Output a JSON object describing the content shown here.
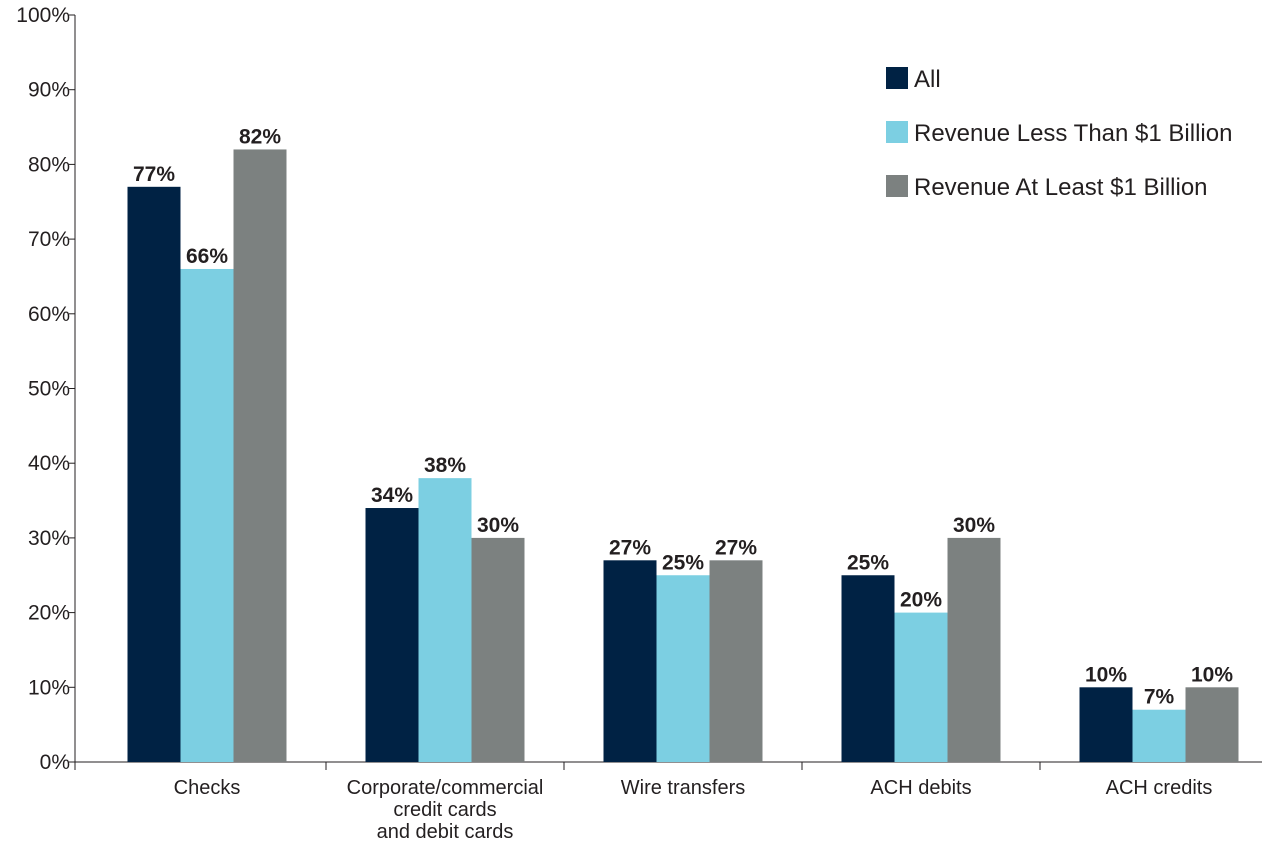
{
  "chart_data": {
    "type": "bar",
    "categories": [
      [
        "Checks"
      ],
      [
        "Corporate/commercial",
        "credit cards",
        "and debit cards"
      ],
      [
        "Wire transfers"
      ],
      [
        "ACH debits"
      ],
      [
        "ACH credits"
      ]
    ],
    "series": [
      {
        "name": "All",
        "color": "#002244",
        "values": [
          77,
          34,
          27,
          25,
          10
        ],
        "labels": [
          "77%",
          "34%",
          "27%",
          "25%",
          "10%"
        ]
      },
      {
        "name": "Revenue Less Than $1 Billion",
        "color": "#7ccfe2",
        "values": [
          66,
          38,
          25,
          20,
          7
        ],
        "labels": [
          "66%",
          "38%",
          "25%",
          "20%",
          "7%"
        ]
      },
      {
        "name": "Revenue At Least $1 Billion",
        "color": "#7c8180",
        "values": [
          82,
          30,
          27,
          30,
          10
        ],
        "labels": [
          "82%",
          "30%",
          "27%",
          "30%",
          "10%"
        ]
      }
    ],
    "y_ticks": [
      "0%",
      "10%",
      "20%",
      "30%",
      "40%",
      "50%",
      "60%",
      "70%",
      "80%",
      "90%",
      "100%"
    ],
    "ylim": [
      0,
      100
    ],
    "legend_position": "top-right",
    "grid": false
  }
}
